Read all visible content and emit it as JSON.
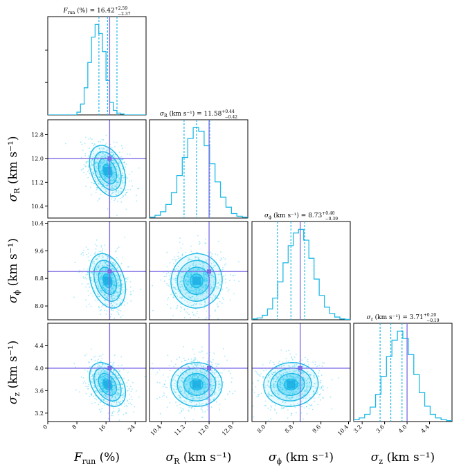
{
  "chart_data": {
    "type": "corner",
    "colors": {
      "samples": "#00bfef",
      "contour": "#1fb9e6",
      "truth": "#7a6ae6",
      "axis": "#000000"
    },
    "parameters": [
      {
        "key": "frun",
        "sym": "F",
        "sub": "run",
        "unit": "(%)",
        "range": [
          0,
          27
        ],
        "ticks": [
          "0",
          "8",
          "16",
          "24"
        ],
        "tick_values": [
          0,
          8,
          16,
          24
        ],
        "title_label": "(%) = 16.42",
        "title_sup": "+2.59",
        "title_sub": "−2.37",
        "median": 16.42,
        "q16": 14.05,
        "q84": 19.01,
        "truth": 17.0
      },
      {
        "key": "sr",
        "sym": "σ",
        "sub": "R",
        "unit": "(km s⁻¹)",
        "range": [
          10.0,
          13.3
        ],
        "ticks": [
          "10.4",
          "11.2",
          "12.0",
          "12.8"
        ],
        "tick_values": [
          10.4,
          11.2,
          12.0,
          12.8
        ],
        "title_label": "(km s⁻¹) = 11.58",
        "title_sup": "+0.44",
        "title_sub": "−0.42",
        "median": 11.58,
        "q16": 11.16,
        "q84": 12.02,
        "truth": 12.0
      },
      {
        "key": "sp",
        "sym": "σ",
        "sub": "ϕ",
        "unit": "(km s⁻¹)",
        "range": [
          7.6,
          10.45
        ],
        "ticks": [
          "8.0",
          "8.8",
          "9.6",
          "10.4"
        ],
        "tick_values": [
          8.0,
          8.8,
          9.6,
          10.4
        ],
        "title_label": "(km s⁻¹) = 8.73",
        "title_sup": "+0.40",
        "title_sub": "−0.39",
        "median": 8.73,
        "q16": 8.34,
        "q84": 9.13,
        "truth": 9.0
      },
      {
        "key": "sz",
        "sym": "σ",
        "sub": "z",
        "unit": "(km s⁻¹)",
        "range": [
          3.05,
          4.8
        ],
        "ticks": [
          "3.2",
          "3.6",
          "4.0",
          "4.4"
        ],
        "tick_values": [
          3.2,
          3.6,
          4.0,
          4.4
        ],
        "title_label": "(km s⁻¹) = 3.71",
        "title_sup": "+0.20",
        "title_sub": "−0.19",
        "median": 3.71,
        "q16": 3.52,
        "q84": 3.91,
        "truth": 4.0
      }
    ],
    "axis_labels": [
      {
        "sym": "F",
        "sub": "run",
        "unit": "(%)"
      },
      {
        "sym": "σ",
        "sub": "R",
        "unit": "(km s⁻¹)"
      },
      {
        "sym": "σ",
        "sub": "ϕ",
        "unit": "(km s⁻¹)"
      },
      {
        "sym": "σ",
        "sub": "z",
        "unit": "(km s⁻¹)"
      }
    ],
    "histograms": {
      "frun": [
        0,
        0,
        0,
        0,
        0,
        0,
        0,
        0,
        0.03,
        0.12,
        0.3,
        0.58,
        0.86,
        1.0,
        0.9,
        0.7,
        0.38,
        0.14,
        0.05,
        0.02,
        0.01,
        0,
        0,
        0,
        0,
        0,
        0
      ],
      "sr": [
        0.01,
        0.03,
        0.07,
        0.15,
        0.28,
        0.47,
        0.67,
        0.88,
        1.0,
        0.96,
        0.8,
        0.6,
        0.4,
        0.23,
        0.12,
        0.05,
        0.02,
        0.01
      ],
      "sp": [
        0.01,
        0.02,
        0.05,
        0.12,
        0.24,
        0.42,
        0.63,
        0.82,
        0.96,
        1.0,
        0.88,
        0.68,
        0.45,
        0.27,
        0.14,
        0.07,
        0.03,
        0.01,
        0.005
      ],
      "sz": [
        0.02,
        0.04,
        0.08,
        0.16,
        0.3,
        0.5,
        0.72,
        0.9,
        1.0,
        0.92,
        0.74,
        0.52,
        0.32,
        0.17,
        0.08,
        0.04,
        0.02,
        0.01
      ]
    },
    "correlations": {
      "sr_frun": -0.35,
      "sp_frun": -0.3,
      "sz_frun": -0.38,
      "sp_sr": 0.02,
      "sz_sr": 0.0,
      "sz_sp": 0.05
    },
    "contour_levels": [
      0.5,
      1.0,
      1.5,
      2.0
    ]
  }
}
